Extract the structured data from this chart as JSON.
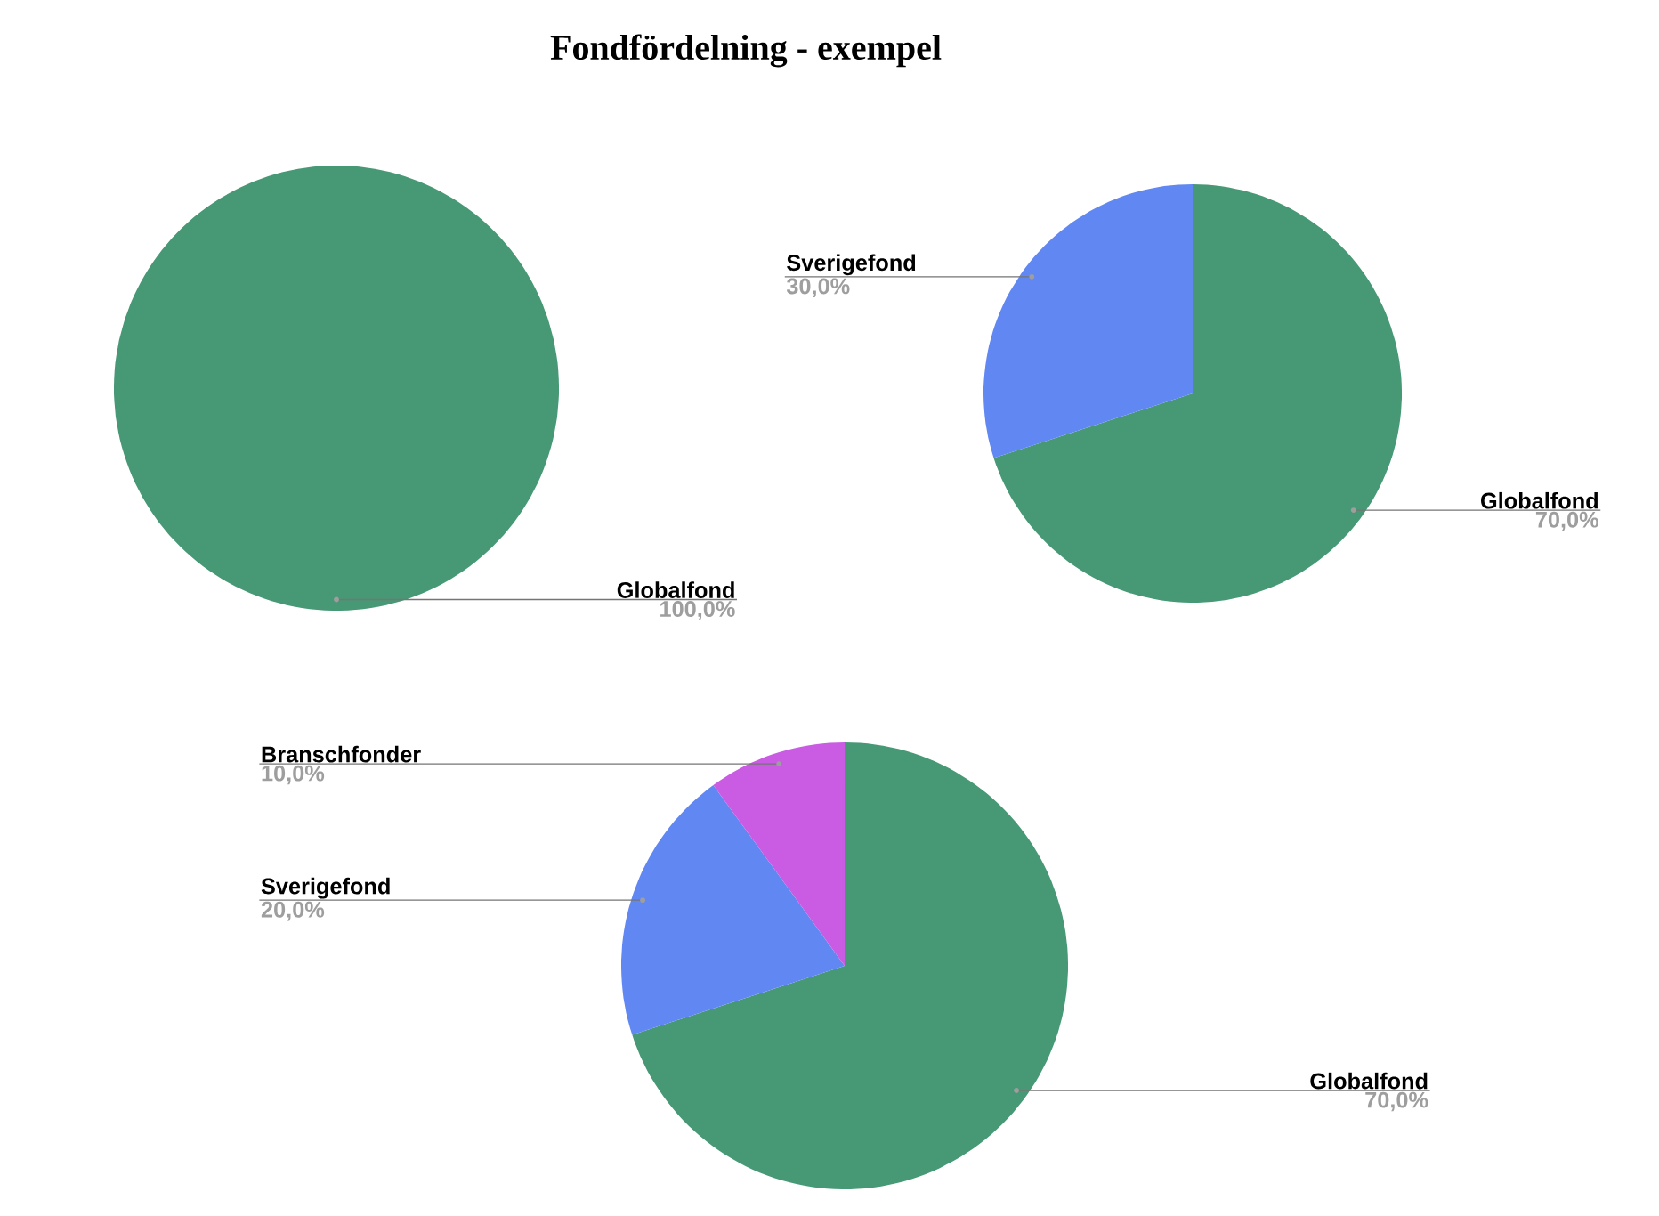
{
  "chart_data": [
    {
      "type": "pie",
      "title": "Fondfördelning - exempel",
      "categories": [
        "Globalfond"
      ],
      "values": [
        100
      ],
      "colors": [
        "#479875"
      ],
      "value_labels": [
        "100,0%"
      ]
    },
    {
      "type": "pie",
      "categories": [
        "Globalfond",
        "Sverigefond"
      ],
      "values": [
        70,
        30
      ],
      "colors": [
        "#479875",
        "#6188f2"
      ],
      "value_labels": [
        "70,0%",
        "30,0%"
      ]
    },
    {
      "type": "pie",
      "categories": [
        "Globalfond",
        "Sverigefond",
        "Branschfonder"
      ],
      "values": [
        70,
        20,
        10
      ],
      "colors": [
        "#479875",
        "#6188f2",
        "#c95ce3"
      ],
      "value_labels": [
        "70,0%",
        "20,0%",
        "10,0%"
      ]
    }
  ]
}
